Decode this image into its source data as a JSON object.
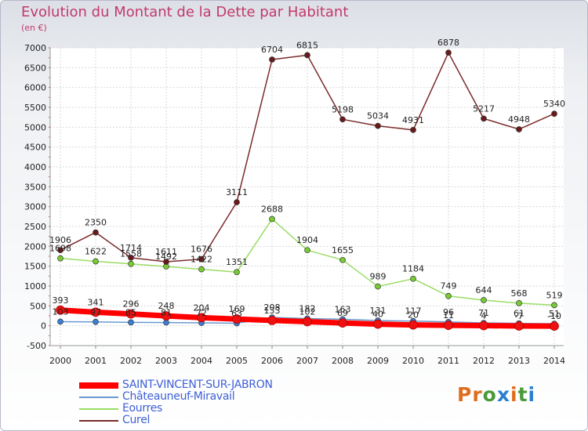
{
  "title": "Evolution du Montant de la Dette par Habitant",
  "subtitle": "(en €)",
  "logo": {
    "text": "Proxiti",
    "letter_colors": [
      "#e06d1e",
      "#e06d1e",
      "#4a9a3a",
      "#2a7fd0",
      "#e06d1e",
      "#4a9a3a",
      "#2a7fd0"
    ]
  },
  "chart_data": {
    "type": "line",
    "title": "Evolution du Montant de la Dette par Habitant",
    "subtitle": "(en €)",
    "x": [
      "2000",
      "2001",
      "2002",
      "2003",
      "2004",
      "2005",
      "2006",
      "2007",
      "2008",
      "2009",
      "2010",
      "2011",
      "2012",
      "2013",
      "2014"
    ],
    "ylim": [
      -500,
      7000
    ],
    "yticks": [
      -500,
      0,
      500,
      1000,
      1500,
      2000,
      2500,
      3000,
      3500,
      4000,
      4500,
      5000,
      5500,
      6000,
      6500,
      7000
    ],
    "grid": true,
    "legend_position": "bottom-left",
    "series": [
      {
        "name": "SAINT-VINCENT-SUR-JABRON",
        "color": "#ff0000",
        "marker": "#ee1111",
        "values": [
          393,
          341,
          296,
          248,
          204,
          169,
          133,
          102,
          69,
          40,
          20,
          11,
          4,
          -7,
          -10
        ]
      },
      {
        "name": "Châteauneuf-Miravail",
        "color": "#6a9ad0",
        "marker": "#3b7fd4",
        "values": [
          103,
          97,
          85,
          81,
          72,
          63,
          208,
          182,
          163,
          131,
          117,
          96,
          71,
          61,
          51
        ]
      },
      {
        "name": "Eourres",
        "color": "#99dd66",
        "marker": "#77cc33",
        "values": [
          1698,
          1622,
          1558,
          1492,
          1422,
          1351,
          2688,
          1904,
          1655,
          989,
          1184,
          749,
          644,
          568,
          519
        ]
      },
      {
        "name": "Curel",
        "color": "#7a2b2b",
        "marker": "#6a1a1a",
        "values": [
          1906,
          2350,
          1714,
          1611,
          1676,
          3111,
          6704,
          6815,
          5198,
          5034,
          4931,
          6878,
          5217,
          4948,
          5340
        ]
      }
    ]
  }
}
